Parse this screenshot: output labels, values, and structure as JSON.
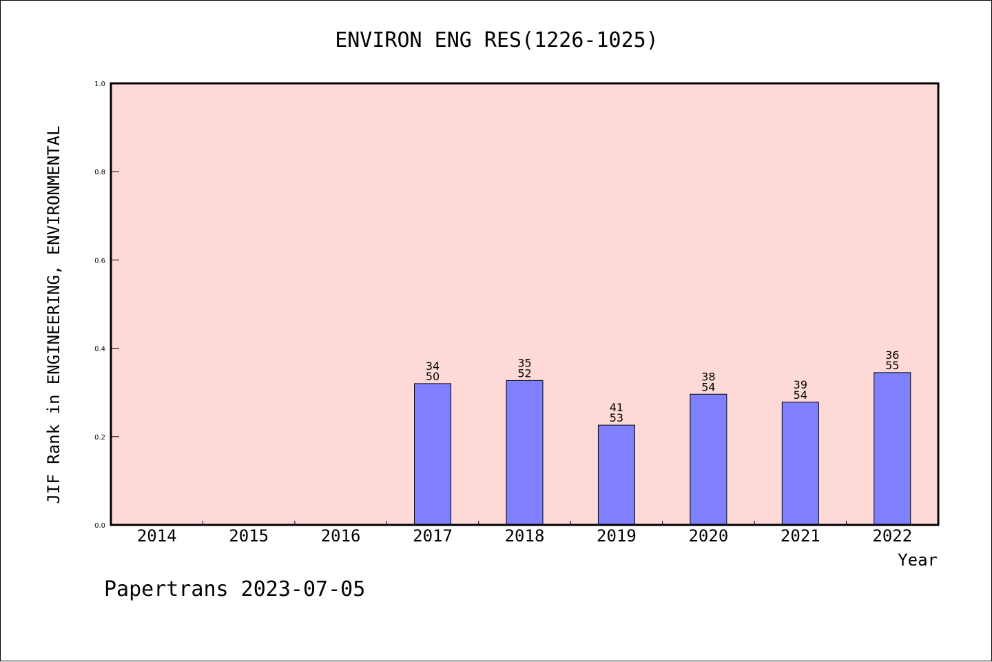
{
  "chart_data": {
    "type": "bar",
    "title": "ENVIRON ENG RES(1226-1025)",
    "xlabel": "Year",
    "ylabel": "JIF Rank in ENGINEERING, ENVIRONMENTAL",
    "ylim": [
      0,
      1.0
    ],
    "yticks": [
      "0.0",
      "0.2",
      "0.4",
      "0.6",
      "0.8",
      "1.0"
    ],
    "categories": [
      "2014",
      "2015",
      "2016",
      "2017",
      "2018",
      "2019",
      "2020",
      "2021",
      "2022"
    ],
    "values": [
      null,
      null,
      null,
      0.32,
      0.327,
      0.226,
      0.296,
      0.278,
      0.345
    ],
    "labels": [
      null,
      null,
      null,
      [
        "34",
        "50"
      ],
      [
        "35",
        "52"
      ],
      [
        "41",
        "53"
      ],
      [
        "38",
        "54"
      ],
      [
        "39",
        "54"
      ],
      [
        "36",
        "55"
      ]
    ],
    "grid": false,
    "colors": {
      "plot_bg": "#fddad7",
      "bar": "#8080ff",
      "bar_edge": "#000000"
    }
  },
  "footer": "Papertrans 2023-07-05"
}
